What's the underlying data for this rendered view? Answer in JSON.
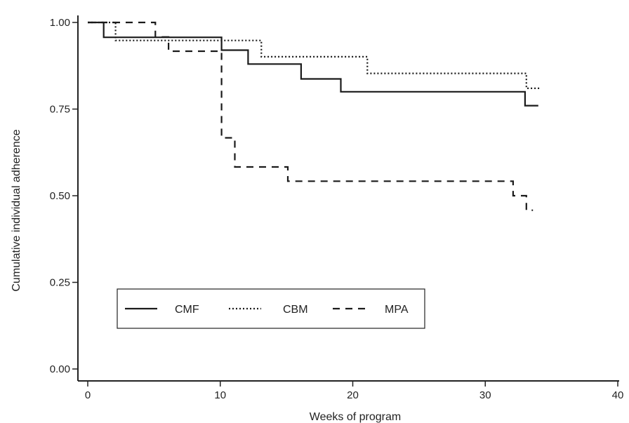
{
  "chart_data": {
    "type": "line",
    "step": true,
    "title": "",
    "xlabel": "Weeks of program",
    "ylabel": "Cumulative individual adherence",
    "xlim": [
      0,
      40
    ],
    "ylim": [
      0,
      1
    ],
    "xticks": [
      0,
      10,
      20,
      30,
      40
    ],
    "xtick_labels": [
      "0",
      "10",
      "20",
      "30",
      "40"
    ],
    "yticks": [
      0,
      0.25,
      0.5,
      0.75,
      1
    ],
    "ytick_labels": [
      "0.00",
      "0.25",
      "0.50",
      "0.75",
      "1.00"
    ],
    "grid": false,
    "legend": {
      "placement": "bottom-left",
      "boxed": true,
      "orientation": "horizontal"
    },
    "colors": {
      "axis": "#222222",
      "line": "#1a1a1a"
    },
    "series": [
      {
        "name": "CMF",
        "style": "solid",
        "x": [
          0,
          1.2,
          1.2,
          10.1,
          10.1,
          12.1,
          12.1,
          16.1,
          16.1,
          19.1,
          19.1,
          33.0,
          33.0,
          34.0
        ],
        "y": [
          1.0,
          1.0,
          0.957,
          0.957,
          0.92,
          0.92,
          0.88,
          0.88,
          0.837,
          0.837,
          0.8,
          0.8,
          0.76,
          0.76
        ]
      },
      {
        "name": "CBM",
        "style": "dotted",
        "x": [
          0,
          2.1,
          2.1,
          13.1,
          13.1,
          21.1,
          21.1,
          33.1,
          33.1,
          34.1
        ],
        "y": [
          1.0,
          1.0,
          0.948,
          0.948,
          0.901,
          0.901,
          0.853,
          0.853,
          0.81,
          0.81
        ]
      },
      {
        "name": "MPA",
        "style": "dashed",
        "x": [
          0,
          5.1,
          5.1,
          6.1,
          6.1,
          10.1,
          10.1,
          11.1,
          11.1,
          15.1,
          15.1,
          32.1,
          32.1,
          33.1,
          33.1,
          33.6
        ],
        "y": [
          1.0,
          1.0,
          0.958,
          0.958,
          0.917,
          0.917,
          0.667,
          0.667,
          0.583,
          0.583,
          0.542,
          0.542,
          0.5,
          0.5,
          0.458,
          0.458
        ]
      }
    ]
  }
}
